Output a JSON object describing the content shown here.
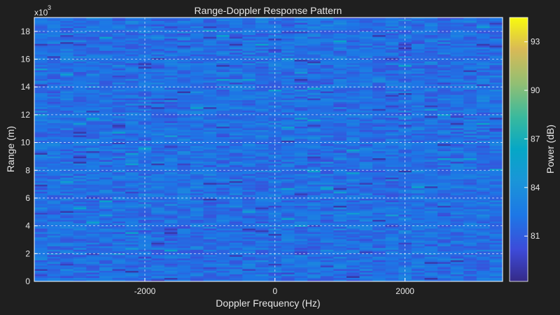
{
  "chart_data": {
    "type": "heatmap",
    "title": "Range-Doppler Response Pattern",
    "xlabel": "Doppler Frequency (Hz)",
    "ylabel": "Range (m)",
    "y_exponent_label": "x10",
    "y_exponent_power": "3",
    "xlim": [
      -3700,
      3500
    ],
    "ylim": [
      0,
      19
    ],
    "x_ticks": [
      -2000,
      0,
      2000
    ],
    "x_tick_labels": [
      "-2000",
      "0",
      "2000"
    ],
    "y_ticks": [
      0,
      2,
      4,
      6,
      8,
      10,
      12,
      14,
      16,
      18
    ],
    "y_tick_labels": [
      "0",
      "2",
      "4",
      "6",
      "8",
      "10",
      "12",
      "14",
      "16",
      "18"
    ],
    "grid": true,
    "colorbar": {
      "label": "Power (dB)",
      "range": [
        78.2,
        94.5
      ],
      "ticks": [
        81,
        84,
        87,
        90,
        93
      ],
      "tick_labels": [
        "81",
        "84",
        "87",
        "90",
        "93"
      ],
      "colormap": "parula"
    },
    "values_summary": {
      "typical_power_db": 82,
      "min_power_db": 79,
      "max_power_db": 86
    }
  },
  "colors": {
    "background": "#1f1f1f",
    "text": "#e6e6e6",
    "grid": "#ffffff",
    "frame": "#ffffff"
  }
}
